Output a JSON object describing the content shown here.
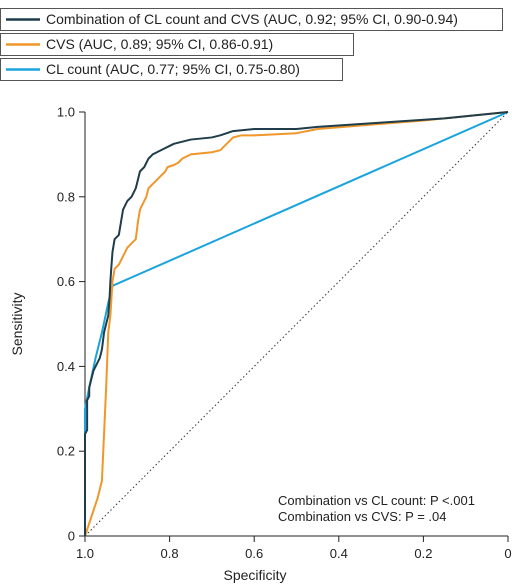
{
  "chart_data": {
    "type": "line",
    "xlabel": "Specificity",
    "ylabel": "Sensitivity",
    "xlim": [
      1.0,
      0
    ],
    "ylim": [
      0,
      1.0
    ],
    "x_ticks": [
      "1.0",
      "0.8",
      "0.6",
      "0.4",
      "0.2",
      "0"
    ],
    "y_ticks": [
      "0",
      "0.2",
      "0.4",
      "0.6",
      "0.8",
      "1.0"
    ],
    "grid": false,
    "legend_position": "top-left",
    "series": [
      {
        "name": "Combination of CL count and CVS (AUC, 0.92; 95% CI, 0.90-0.94)",
        "color": "#1f3d4a",
        "points": [
          [
            1.0,
            0
          ],
          [
            1.0,
            0.24
          ],
          [
            0.995,
            0.25
          ],
          [
            0.995,
            0.32
          ],
          [
            0.99,
            0.33
          ],
          [
            0.99,
            0.35
          ],
          [
            0.985,
            0.37
          ],
          [
            0.98,
            0.39
          ],
          [
            0.975,
            0.4
          ],
          [
            0.97,
            0.41
          ],
          [
            0.965,
            0.42
          ],
          [
            0.96,
            0.44
          ],
          [
            0.955,
            0.48
          ],
          [
            0.95,
            0.5
          ],
          [
            0.945,
            0.52
          ],
          [
            0.942,
            0.56
          ],
          [
            0.94,
            0.6
          ],
          [
            0.938,
            0.63
          ],
          [
            0.935,
            0.67
          ],
          [
            0.93,
            0.7
          ],
          [
            0.92,
            0.71
          ],
          [
            0.915,
            0.74
          ],
          [
            0.91,
            0.77
          ],
          [
            0.9,
            0.79
          ],
          [
            0.89,
            0.8
          ],
          [
            0.885,
            0.81
          ],
          [
            0.88,
            0.82
          ],
          [
            0.875,
            0.84
          ],
          [
            0.87,
            0.86
          ],
          [
            0.86,
            0.87
          ],
          [
            0.855,
            0.88
          ],
          [
            0.85,
            0.89
          ],
          [
            0.84,
            0.9
          ],
          [
            0.83,
            0.905
          ],
          [
            0.82,
            0.91
          ],
          [
            0.81,
            0.915
          ],
          [
            0.8,
            0.92
          ],
          [
            0.79,
            0.925
          ],
          [
            0.77,
            0.93
          ],
          [
            0.75,
            0.935
          ],
          [
            0.7,
            0.94
          ],
          [
            0.68,
            0.945
          ],
          [
            0.65,
            0.955
          ],
          [
            0.6,
            0.96
          ],
          [
            0.5,
            0.96
          ],
          [
            0.45,
            0.965
          ],
          [
            0.3,
            0.975
          ],
          [
            0.15,
            0.985
          ],
          [
            0.0,
            1.0
          ]
        ]
      },
      {
        "name": "CVS (AUC, 0.89; 95% CI, 0.86-0.91)",
        "color": "#f0962a",
        "points": [
          [
            1.0,
            0
          ],
          [
            0.97,
            0.09
          ],
          [
            0.96,
            0.13
          ],
          [
            0.95,
            0.35
          ],
          [
            0.945,
            0.48
          ],
          [
            0.94,
            0.52
          ],
          [
            0.935,
            0.6
          ],
          [
            0.93,
            0.63
          ],
          [
            0.92,
            0.64
          ],
          [
            0.91,
            0.66
          ],
          [
            0.9,
            0.68
          ],
          [
            0.89,
            0.69
          ],
          [
            0.88,
            0.7
          ],
          [
            0.875,
            0.74
          ],
          [
            0.87,
            0.77
          ],
          [
            0.86,
            0.79
          ],
          [
            0.855,
            0.8
          ],
          [
            0.85,
            0.82
          ],
          [
            0.84,
            0.83
          ],
          [
            0.83,
            0.84
          ],
          [
            0.82,
            0.85
          ],
          [
            0.81,
            0.86
          ],
          [
            0.805,
            0.87
          ],
          [
            0.79,
            0.875
          ],
          [
            0.78,
            0.88
          ],
          [
            0.77,
            0.89
          ],
          [
            0.75,
            0.9
          ],
          [
            0.7,
            0.905
          ],
          [
            0.68,
            0.91
          ],
          [
            0.65,
            0.94
          ],
          [
            0.63,
            0.945
          ],
          [
            0.6,
            0.945
          ],
          [
            0.5,
            0.95
          ],
          [
            0.45,
            0.96
          ],
          [
            0.2,
            0.98
          ],
          [
            0.0,
            1.0
          ]
        ]
      },
      {
        "name": "CL count (AUC, 0.77; 95% CI, 0.75-0.80)",
        "color": "#1aa3dd",
        "points": [
          [
            1.0,
            0
          ],
          [
            1.0,
            0.3
          ],
          [
            0.99,
            0.35
          ],
          [
            0.975,
            0.42
          ],
          [
            0.96,
            0.48
          ],
          [
            0.945,
            0.55
          ],
          [
            0.935,
            0.59
          ],
          [
            0.0,
            1.0
          ]
        ]
      }
    ],
    "reference_line": [
      [
        1.0,
        0
      ],
      [
        0.0,
        1.0
      ]
    ],
    "annotations": [
      "Combination vs CL count: P <.001",
      "Combination vs CVS: P = .04"
    ]
  }
}
